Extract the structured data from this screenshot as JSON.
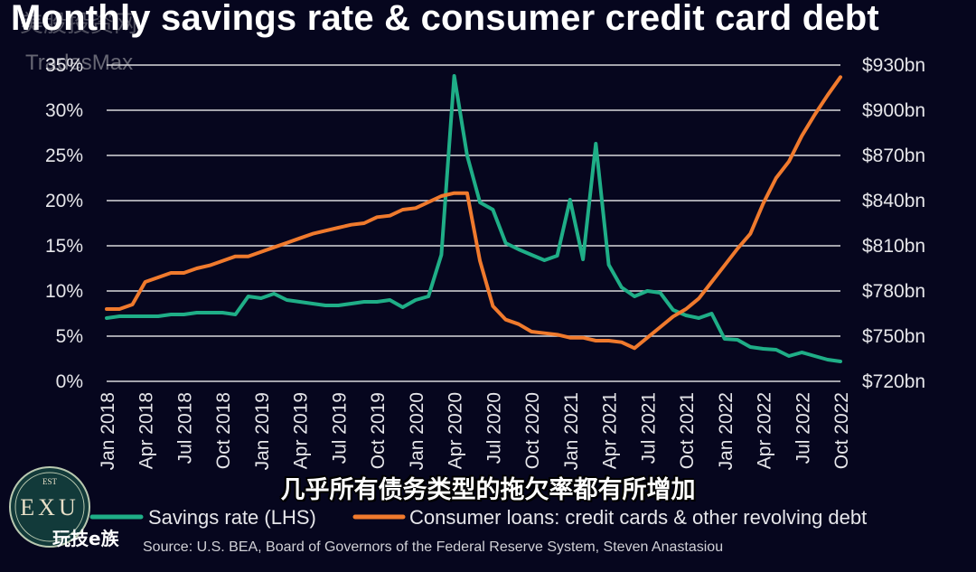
{
  "title": "Monthly savings rate & consumer credit card debt",
  "watermark_top": "美股投资网",
  "watermark_brand": "TradesMax",
  "subtitle_cn": "几乎所有债务类型的拖欠率都有所增加",
  "logo": {
    "top": "EST",
    "letters": "EXU",
    "caption": "玩技e族"
  },
  "source": "Source: U.S. BEA, Board of Governors of the Federal Reserve System, Steven Anastasiou",
  "colors": {
    "background": "#06061e",
    "savings": "#1fae87",
    "credit": "#f07a2d",
    "grid": "#d8d8dc"
  },
  "chart_data": {
    "type": "line",
    "title": "Monthly savings rate & consumer credit card debt",
    "x": [
      "Jan 2018",
      "Feb 2018",
      "Mar 2018",
      "Apr 2018",
      "May 2018",
      "Jun 2018",
      "Jul 2018",
      "Aug 2018",
      "Sep 2018",
      "Oct 2018",
      "Nov 2018",
      "Dec 2018",
      "Jan 2019",
      "Feb 2019",
      "Mar 2019",
      "Apr 2019",
      "May 2019",
      "Jun 2019",
      "Jul 2019",
      "Aug 2019",
      "Sep 2019",
      "Oct 2019",
      "Nov 2019",
      "Dec 2019",
      "Jan 2020",
      "Feb 2020",
      "Mar 2020",
      "Apr 2020",
      "May 2020",
      "Jun 2020",
      "Jul 2020",
      "Aug 2020",
      "Sep 2020",
      "Oct 2020",
      "Nov 2020",
      "Dec 2020",
      "Jan 2021",
      "Feb 2021",
      "Mar 2021",
      "Apr 2021",
      "May 2021",
      "Jun 2021",
      "Jul 2021",
      "Aug 2021",
      "Sep 2021",
      "Oct 2021",
      "Nov 2021",
      "Dec 2021",
      "Jan 2022",
      "Feb 2022",
      "Mar 2022",
      "Apr 2022",
      "May 2022",
      "Jun 2022",
      "Jul 2022",
      "Aug 2022",
      "Sep 2022",
      "Oct 2022"
    ],
    "x_tick_labels": [
      "Jan 2018",
      "Apr 2018",
      "Jul 2018",
      "Oct 2018",
      "Jan 2019",
      "Apr 2019",
      "Jul 2019",
      "Oct 2019",
      "Jan 2020",
      "Apr 2020",
      "Jul 2020",
      "Oct 2020",
      "Jan 2021",
      "Apr 2021",
      "Jul 2021",
      "Oct 2021",
      "Jan 2022",
      "Apr 2022",
      "Jul 2022",
      "Oct 2022"
    ],
    "y_left": {
      "ylim": [
        0,
        35
      ],
      "ticks": [
        "0%",
        "5%",
        "10%",
        "15%",
        "20%",
        "25%",
        "30%",
        "35%"
      ]
    },
    "y_right": {
      "ylim": [
        720,
        930
      ],
      "ticks": [
        "$720bn",
        "$750bn",
        "$780bn",
        "$810bn",
        "$840bn",
        "$870bn",
        "$900bn",
        "$930bn"
      ]
    },
    "grid": true,
    "legend_position": "bottom",
    "series": [
      {
        "name": "Savings rate (LHS)",
        "axis": "left",
        "color": "#1fae87",
        "values": [
          7.0,
          7.2,
          7.2,
          7.2,
          7.2,
          7.4,
          7.4,
          7.6,
          7.6,
          7.6,
          7.4,
          9.4,
          9.2,
          9.7,
          9.0,
          8.8,
          8.6,
          8.4,
          8.4,
          8.6,
          8.8,
          8.8,
          9.0,
          8.2,
          9.0,
          9.4,
          14.0,
          33.8,
          25.0,
          19.8,
          19.0,
          15.3,
          14.6,
          14.0,
          13.4,
          13.9,
          20.1,
          13.5,
          26.3,
          12.9,
          10.4,
          9.4,
          10.0,
          9.8,
          7.9,
          7.3,
          7.0,
          7.5,
          4.7,
          4.6,
          3.8,
          3.6,
          3.5,
          2.8,
          3.2,
          2.8,
          2.4,
          2.2
        ]
      },
      {
        "name": "Consumer loans: credit cards & other revolving debt",
        "axis": "right",
        "color": "#f07a2d",
        "values": [
          768,
          768,
          771,
          786,
          789,
          792,
          792,
          795,
          797,
          800,
          803,
          803,
          806,
          809,
          812,
          815,
          818,
          820,
          822,
          824,
          825,
          829,
          830,
          834,
          835,
          839,
          843,
          845,
          845,
          800,
          770,
          761,
          758,
          753,
          752,
          751,
          749,
          749,
          747,
          747,
          746,
          742,
          749,
          756,
          763,
          768,
          775,
          786,
          797,
          808,
          818,
          838,
          855,
          866,
          883,
          897,
          910,
          922
        ]
      }
    ]
  }
}
